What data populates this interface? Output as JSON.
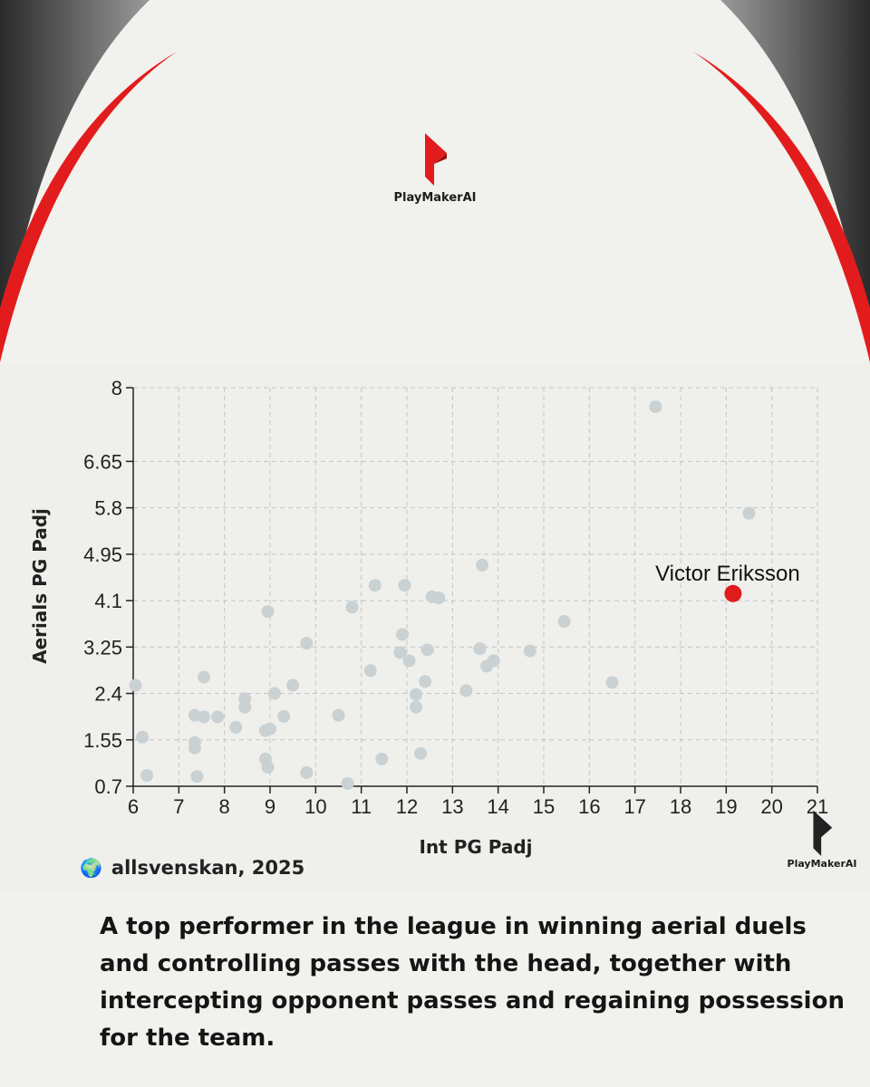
{
  "brand": {
    "name": "PlayMakerAI"
  },
  "source": {
    "icon": "globe-icon",
    "text": "allsvenskan, 2025"
  },
  "caption": "A top performer in the league in winning aerial duels and controlling passes with the head, together with intercepting opponent passes and regaining possession for the team.",
  "colors": {
    "accent": "#e21c1c",
    "points": "#c9d1d3",
    "highlight": "#e01b1b"
  },
  "chart_data": {
    "type": "scatter",
    "title": "",
    "xlabel": "Int PG Padj",
    "ylabel": "Aerials PG Padj",
    "xlim": [
      6,
      21
    ],
    "ylim": [
      0.7,
      8
    ],
    "xticks": [
      "6",
      "7",
      "8",
      "9",
      "10",
      "11",
      "12",
      "13",
      "14",
      "15",
      "16",
      "17",
      "18",
      "19",
      "20",
      "21"
    ],
    "yticks": [
      "0.7",
      "1.55",
      "2.4",
      "3.25",
      "4.1",
      "4.95",
      "5.8",
      "6.65",
      "8"
    ],
    "grid": true,
    "highlight": {
      "name": "Victor Eriksson",
      "x": 19.15,
      "y": 4.23
    },
    "points": [
      [
        6.05,
        2.55
      ],
      [
        6.2,
        1.6
      ],
      [
        6.3,
        0.9
      ],
      [
        7.35,
        2.0
      ],
      [
        7.35,
        1.5
      ],
      [
        7.35,
        1.4
      ],
      [
        7.4,
        0.88
      ],
      [
        7.55,
        2.7
      ],
      [
        7.55,
        1.97
      ],
      [
        7.85,
        1.97
      ],
      [
        8.25,
        1.78
      ],
      [
        8.45,
        2.3
      ],
      [
        8.45,
        2.15
      ],
      [
        8.9,
        1.72
      ],
      [
        8.9,
        1.2
      ],
      [
        8.95,
        1.05
      ],
      [
        8.95,
        3.9
      ],
      [
        9.0,
        1.75
      ],
      [
        9.1,
        2.4
      ],
      [
        9.3,
        1.98
      ],
      [
        9.5,
        2.55
      ],
      [
        9.8,
        3.32
      ],
      [
        9.8,
        0.95
      ],
      [
        10.5,
        2.0
      ],
      [
        10.7,
        0.75
      ],
      [
        10.8,
        3.98
      ],
      [
        11.2,
        2.82
      ],
      [
        11.3,
        4.38
      ],
      [
        11.45,
        1.2
      ],
      [
        11.85,
        3.15
      ],
      [
        11.9,
        3.48
      ],
      [
        11.95,
        4.38
      ],
      [
        12.05,
        3.0
      ],
      [
        12.2,
        2.15
      ],
      [
        12.2,
        2.38
      ],
      [
        12.3,
        1.3
      ],
      [
        12.4,
        2.62
      ],
      [
        12.45,
        3.2
      ],
      [
        12.55,
        4.17
      ],
      [
        12.7,
        4.15
      ],
      [
        13.3,
        2.45
      ],
      [
        13.6,
        3.22
      ],
      [
        13.65,
        4.75
      ],
      [
        13.75,
        2.9
      ],
      [
        13.9,
        3.0
      ],
      [
        14.7,
        3.18
      ],
      [
        15.45,
        3.72
      ],
      [
        16.5,
        2.6
      ],
      [
        17.45,
        7.65
      ],
      [
        19.5,
        5.7
      ]
    ]
  }
}
